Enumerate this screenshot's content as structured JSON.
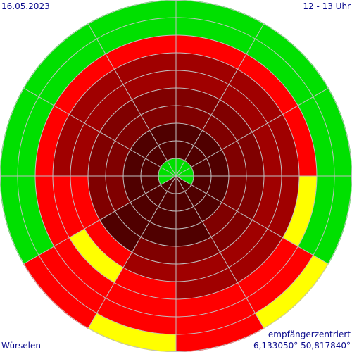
{
  "header": {
    "date": "16.05.2023",
    "time_range": "12 - 13 Uhr"
  },
  "footer": {
    "location": "Würselen",
    "mode": "empfängerzentriert",
    "coordinates": "6,133050° 50,817840°"
  },
  "chart_data": {
    "type": "polar-heatmap",
    "sectors": 12,
    "sector_order": "clockwise from north",
    "rings": 10,
    "ring_order": "center outward",
    "color_scale": {
      "darkest_red": "#500000",
      "dark_red": "#800000",
      "medium_red": "#a00000",
      "red": "#ff0000",
      "yellow": "#ffff00",
      "green": "#00e000",
      "grid": "#c0c0c0"
    },
    "cells": [
      [
        "green",
        "darkest_red",
        "darkest_red",
        "dark_red",
        "dark_red",
        "medium_red",
        "medium_red",
        "red",
        "green",
        "green"
      ],
      [
        "green",
        "darkest_red",
        "darkest_red",
        "dark_red",
        "dark_red",
        "medium_red",
        "medium_red",
        "red",
        "green",
        "green"
      ],
      [
        "green",
        "darkest_red",
        "darkest_red",
        "dark_red",
        "dark_red",
        "medium_red",
        "medium_red",
        "red",
        "green",
        "green"
      ],
      [
        "green",
        "darkest_red",
        "darkest_red",
        "dark_red",
        "dark_red",
        "medium_red",
        "medium_red",
        "yellow",
        "green",
        "green"
      ],
      [
        "darkest_red",
        "darkest_red",
        "darkest_red",
        "dark_red",
        "dark_red",
        "medium_red",
        "medium_red",
        "red",
        "red",
        "yellow"
      ],
      [
        "darkest_red",
        "darkest_red",
        "darkest_red",
        "darkest_red",
        "dark_red",
        "medium_red",
        "medium_red",
        "red",
        "red",
        "red"
      ],
      [
        "darkest_red",
        "darkest_red",
        "darkest_red",
        "darkest_red",
        "dark_red",
        "medium_red",
        "red",
        "red",
        "red",
        "yellow"
      ],
      [
        "darkest_red",
        "darkest_red",
        "darkest_red",
        "darkest_red",
        "darkest_red",
        "red",
        "yellow",
        "red",
        "red",
        "red"
      ],
      [
        "green",
        "darkest_red",
        "darkest_red",
        "dark_red",
        "dark_red",
        "red",
        "red",
        "red",
        "green",
        "green"
      ],
      [
        "green",
        "darkest_red",
        "darkest_red",
        "dark_red",
        "dark_red",
        "medium_red",
        "medium_red",
        "red",
        "green",
        "green"
      ],
      [
        "green",
        "darkest_red",
        "darkest_red",
        "dark_red",
        "dark_red",
        "medium_red",
        "medium_red",
        "red",
        "green",
        "green"
      ],
      [
        "green",
        "darkest_red",
        "darkest_red",
        "dark_red",
        "dark_red",
        "medium_red",
        "medium_red",
        "red",
        "green",
        "green"
      ]
    ]
  }
}
